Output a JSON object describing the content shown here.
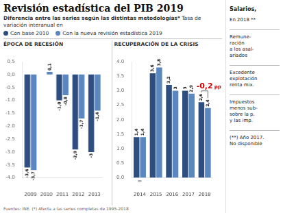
{
  "title": "Revisión estadística del PIB 2019",
  "subtitle": [
    "Diferencia entre las series según las distintas metodologías*",
    "Tasa de variación interanual en"
  ],
  "annotations": [
    "Salarios,",
    "En 2018 **",
    "Remune-\nración\na los asal-\nariados",
    "Excedente\nexplotación\nrenta mix.",
    "Impuestos\nmenos sub-\nsobre la p.\ny las imp.",
    "(**) Año 2017.\nNo disponible"
  ],
  "footer": "Fuentes: INE. (*) Afecta a las series completas de 1995-2018",
  "chart_data": [
    {
      "type": "bar",
      "title": "ÉPOCA DE RECESIÓN",
      "categories": [
        "2009",
        "2010",
        "2011",
        "2012",
        "2013"
      ],
      "series": [
        {
          "name": "Con base 2010",
          "color": "#2d4e7e",
          "values": [
            -3.6,
            0.0,
            -1.0,
            -2.9,
            -3.0
          ],
          "value_labels": [
            "-3,6",
            null,
            "-1,0",
            "-2,9",
            "-3"
          ]
        },
        {
          "name": "Con la nueva revisión estadística 2019",
          "color": "#5b87bf",
          "values": [
            -3.7,
            0.1,
            -0.8,
            -1.7,
            -1.4
          ],
          "value_labels": [
            "-3,7",
            "0,1",
            "-0,8",
            "-1,7",
            "-1,4"
          ]
        }
      ],
      "ylim": [
        -4.0,
        0.5
      ],
      "yticks": [
        {
          "value": -4.0,
          "label": "-4.0"
        },
        -3.5,
        {
          "value": -3.0,
          "label": "-3.0"
        },
        -2.5,
        {
          "value": -2.0,
          "label": "-2.0"
        },
        -1.5,
        {
          "value": -1.0,
          "label": "-1.0"
        },
        -0.5,
        {
          "value": 0.0,
          "label": "0,0"
        },
        0.5
      ],
      "grid": false,
      "data_labels": true
    },
    {
      "type": "bar",
      "title": "RECUPERACIÓN DE LA CRISIS",
      "categories": [
        "2014",
        "2015",
        "2016",
        "2017",
        "2018"
      ],
      "series": [
        {
          "name": "Con base 2010",
          "color": "#2d4e7e",
          "values": [
            1.4,
            3.6,
            3.2,
            3.0,
            2.6
          ],
          "value_labels": [
            "1,4",
            "3,6",
            "3,2",
            "3",
            "2,6"
          ]
        },
        {
          "name": "Con la nueva revisión estadística 2019",
          "color": "#5b87bf",
          "values": [
            1.4,
            3.8,
            3.0,
            2.9,
            2.4
          ],
          "value_labels": [
            "1,4",
            "3,8",
            "3",
            "2,9",
            "2,4"
          ]
        }
      ],
      "ylim": [
        0.0,
        4.0
      ],
      "yticks": [
        {
          "value": 0.0,
          "label": "0.0"
        },
        0.5,
        {
          "value": 1.0,
          "label": "1.0"
        },
        1.5,
        {
          "value": 2.0,
          "label": "2.0"
        },
        2.5,
        {
          "value": 3.0,
          "label": "3.0"
        },
        3.5,
        {
          "value": 4.0,
          "label": "4.0"
        }
      ],
      "grid": false,
      "data_labels": true,
      "annotations": [
        {
          "text": "=",
          "category": "2014"
        },
        {
          "text": "-0,2",
          "category": "2018",
          "color": "#cc0000"
        },
        {
          "text": "pp",
          "category": "2018",
          "color": "#cc0000"
        }
      ]
    }
  ]
}
